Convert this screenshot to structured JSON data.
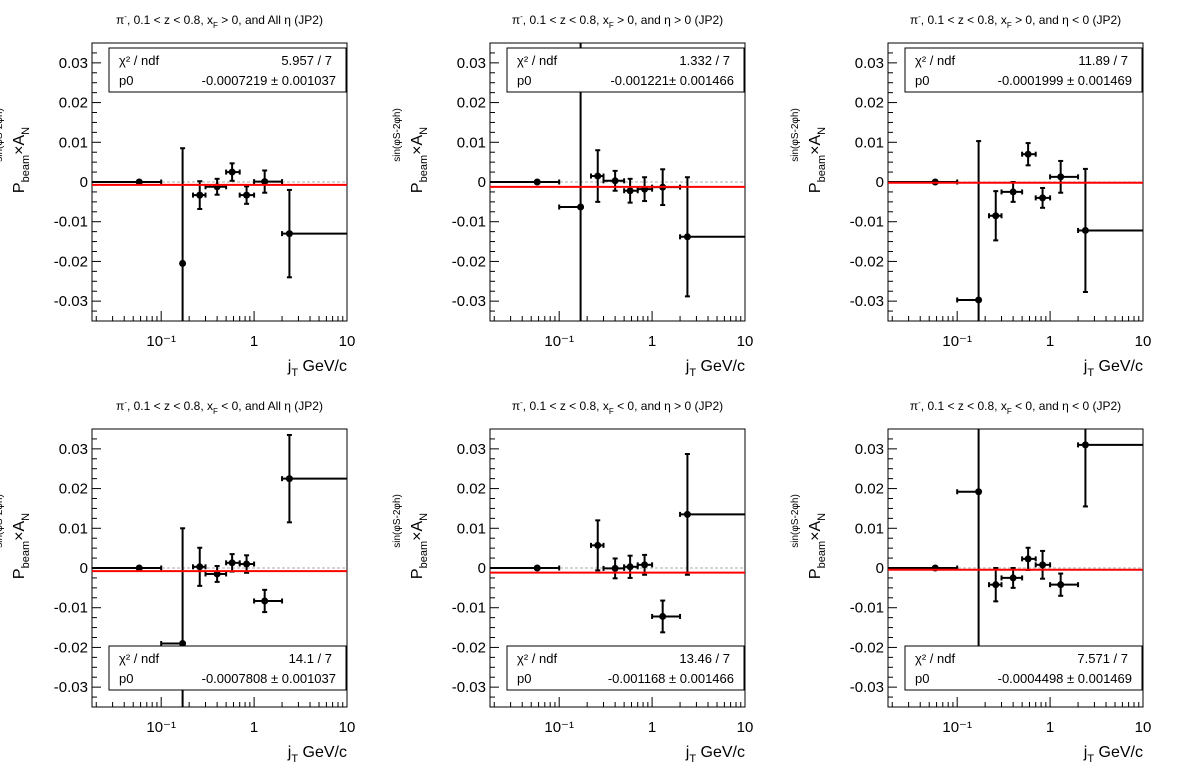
{
  "chart_data": [
    {
      "type": "scatter",
      "title": "π⁻, 0.1 < z < 0.8, x_F > 0, and All η (JP2)",
      "title_parts": {
        "pi": "π",
        "minus": "-",
        "a": ", 0.1 < z < 0.8, x",
        "sub": "F",
        "b": " > 0, and All η (JP2)"
      },
      "xlabel": {
        "j": "j",
        "sub": "T",
        "rest": " GeV/c"
      },
      "ylabel": {
        "p": "P",
        "sub": "beam",
        "times": "×A",
        "n": "N",
        "sup": "sin(φS-2φh)"
      },
      "xscale": "log",
      "xlim": [
        0.018,
        10
      ],
      "ylim": [
        -0.035,
        0.035
      ],
      "xticklabels": [
        "10⁻¹",
        "1",
        "10"
      ],
      "yticklabels": [
        "-0.03",
        "-0.02",
        "-0.01",
        "0",
        "0.01",
        "0.02",
        "0.03"
      ],
      "legend_position": "top",
      "stats": {
        "chi2_label": "χ² / ndf",
        "chi2_value": "5.957 / 7",
        "p0_label": "p0",
        "p0_value": "-0.0007219 ± 0.001037"
      },
      "fit": {
        "p0": -0.0007219,
        "color": "#ff0000"
      },
      "points": [
        {
          "x": 0.058,
          "xlo": 0.018,
          "xhi": 0.1,
          "y": 0.0,
          "err": 0.0
        },
        {
          "x": 0.17,
          "xlo": 0.163,
          "xhi": 0.177,
          "y": -0.0205,
          "err": 0.029
        },
        {
          "x": 0.26,
          "xlo": 0.22,
          "xhi": 0.3,
          "y": -0.0033,
          "err": 0.0035
        },
        {
          "x": 0.4,
          "xlo": 0.3,
          "xhi": 0.5,
          "y": -0.0012,
          "err": 0.002
        },
        {
          "x": 0.58,
          "xlo": 0.5,
          "xhi": 0.7,
          "y": 0.0025,
          "err": 0.0022
        },
        {
          "x": 0.83,
          "xlo": 0.7,
          "xhi": 1.0,
          "y": -0.0033,
          "err": 0.0022
        },
        {
          "x": 1.3,
          "xlo": 1.0,
          "xhi": 2.0,
          "y": 0.0001,
          "err": 0.0028
        },
        {
          "x": 2.4,
          "xlo": 2.0,
          "xhi": 10.0,
          "y": -0.013,
          "err": 0.011
        }
      ]
    },
    {
      "type": "scatter",
      "title": "π⁻, 0.1 < z < 0.8, x_F > 0, and η > 0 (JP2)",
      "title_parts": {
        "pi": "π",
        "minus": "-",
        "a": ", 0.1 < z < 0.8, x",
        "sub": "F",
        "b": " > 0, and η > 0 (JP2)"
      },
      "xlabel": {
        "j": "j",
        "sub": "T",
        "rest": " GeV/c"
      },
      "ylabel": {
        "p": "P",
        "sub": "beam",
        "times": "×A",
        "n": "N",
        "sup": "sin(φS-2φh)"
      },
      "xscale": "log",
      "xlim": [
        0.018,
        10
      ],
      "ylim": [
        -0.035,
        0.035
      ],
      "xticklabels": [
        "10⁻¹",
        "1",
        "10"
      ],
      "yticklabels": [
        "-0.03",
        "-0.02",
        "-0.01",
        "0",
        "0.01",
        "0.02",
        "0.03"
      ],
      "legend_position": "top",
      "stats": {
        "chi2_label": "χ² / ndf",
        "chi2_value": "1.332 / 7",
        "p0_label": "p0",
        "p0_value": "-0.001221± 0.001466"
      },
      "fit": {
        "p0": -0.001221,
        "color": "#ff0000"
      },
      "points": [
        {
          "x": 0.058,
          "xlo": 0.018,
          "xhi": 0.1,
          "y": 0.0,
          "err": 0.0
        },
        {
          "x": 0.17,
          "xlo": 0.1,
          "xhi": 0.17,
          "y": -0.0063,
          "err": 0.045
        },
        {
          "x": 0.26,
          "xlo": 0.22,
          "xhi": 0.3,
          "y": 0.0015,
          "err": 0.0065
        },
        {
          "x": 0.4,
          "xlo": 0.3,
          "xhi": 0.5,
          "y": 0.0003,
          "err": 0.0025
        },
        {
          "x": 0.58,
          "xlo": 0.5,
          "xhi": 0.7,
          "y": -0.0022,
          "err": 0.003
        },
        {
          "x": 0.83,
          "xlo": 0.7,
          "xhi": 1.0,
          "y": -0.0018,
          "err": 0.003
        },
        {
          "x": 1.3,
          "xlo": 1.0,
          "xhi": 2.0,
          "y": -0.0013,
          "err": 0.0045
        },
        {
          "x": 2.4,
          "xlo": 2.0,
          "xhi": 10.0,
          "y": -0.0138,
          "err": 0.015
        }
      ]
    },
    {
      "type": "scatter",
      "title": "π⁻, 0.1 < z < 0.8, x_F > 0, and η < 0 (JP2)",
      "title_parts": {
        "pi": "π",
        "minus": "-",
        "a": ", 0.1 < z < 0.8, x",
        "sub": "F",
        "b": " > 0, and η < 0 (JP2)"
      },
      "xlabel": {
        "j": "j",
        "sub": "T",
        "rest": " GeV/c"
      },
      "ylabel": {
        "p": "P",
        "sub": "beam",
        "times": "×A",
        "n": "N",
        "sup": "sin(φS-2φh)"
      },
      "xscale": "log",
      "xlim": [
        0.018,
        10
      ],
      "ylim": [
        -0.035,
        0.035
      ],
      "xticklabels": [
        "10⁻¹",
        "1",
        "10"
      ],
      "yticklabels": [
        "-0.03",
        "-0.02",
        "-0.01",
        "0",
        "0.01",
        "0.02",
        "0.03"
      ],
      "legend_position": "top",
      "stats": {
        "chi2_label": "χ² / ndf",
        "chi2_value": "11.89 / 7",
        "p0_label": "p0",
        "p0_value": "-0.0001999 ± 0.001469"
      },
      "fit": {
        "p0": -0.0001999,
        "color": "#ff0000"
      },
      "points": [
        {
          "x": 0.058,
          "xlo": 0.018,
          "xhi": 0.1,
          "y": 0.0,
          "err": 0.0
        },
        {
          "x": 0.17,
          "xlo": 0.1,
          "xhi": 0.17,
          "y": -0.0297,
          "err": 0.04
        },
        {
          "x": 0.26,
          "xlo": 0.22,
          "xhi": 0.3,
          "y": -0.0085,
          "err": 0.0062
        },
        {
          "x": 0.4,
          "xlo": 0.3,
          "xhi": 0.5,
          "y": -0.0025,
          "err": 0.0025
        },
        {
          "x": 0.58,
          "xlo": 0.5,
          "xhi": 0.7,
          "y": 0.007,
          "err": 0.0028
        },
        {
          "x": 0.83,
          "xlo": 0.7,
          "xhi": 1.0,
          "y": -0.004,
          "err": 0.0025
        },
        {
          "x": 1.3,
          "xlo": 1.0,
          "xhi": 2.0,
          "y": 0.0013,
          "err": 0.004
        },
        {
          "x": 2.4,
          "xlo": 2.0,
          "xhi": 10.0,
          "y": -0.0122,
          "err": 0.0155
        }
      ]
    },
    {
      "type": "scatter",
      "title": "π⁻, 0.1 < z < 0.8, x_F < 0, and All η (JP2)",
      "title_parts": {
        "pi": "π",
        "minus": "-",
        "a": ", 0.1 < z < 0.8, x",
        "sub": "F",
        "b": " < 0, and All η (JP2)"
      },
      "xlabel": {
        "j": "j",
        "sub": "T",
        "rest": " GeV/c"
      },
      "ylabel": {
        "p": "P",
        "sub": "beam",
        "times": "×A",
        "n": "N",
        "sup": "sin(φS-2φh)"
      },
      "xscale": "log",
      "xlim": [
        0.018,
        10
      ],
      "ylim": [
        -0.035,
        0.035
      ],
      "xticklabels": [
        "10⁻¹",
        "1",
        "10"
      ],
      "yticklabels": [
        "-0.03",
        "-0.02",
        "-0.01",
        "0",
        "0.01",
        "0.02",
        "0.03"
      ],
      "legend_position": "bottom",
      "stats": {
        "chi2_label": "χ² / ndf",
        "chi2_value": "14.1 / 7",
        "p0_label": "p0",
        "p0_value": "-0.0007808 ± 0.001037"
      },
      "fit": {
        "p0": -0.0007808,
        "color": "#ff0000"
      },
      "points": [
        {
          "x": 0.058,
          "xlo": 0.018,
          "xhi": 0.1,
          "y": 0.0,
          "err": 0.0
        },
        {
          "x": 0.17,
          "xlo": 0.1,
          "xhi": 0.17,
          "y": -0.019,
          "err": 0.029
        },
        {
          "x": 0.26,
          "xlo": 0.22,
          "xhi": 0.3,
          "y": 0.0003,
          "err": 0.0048
        },
        {
          "x": 0.4,
          "xlo": 0.3,
          "xhi": 0.5,
          "y": -0.0015,
          "err": 0.002
        },
        {
          "x": 0.58,
          "xlo": 0.5,
          "xhi": 0.7,
          "y": 0.0013,
          "err": 0.0022
        },
        {
          "x": 0.83,
          "xlo": 0.7,
          "xhi": 1.0,
          "y": 0.001,
          "err": 0.0022
        },
        {
          "x": 1.3,
          "xlo": 1.0,
          "xhi": 2.0,
          "y": -0.0083,
          "err": 0.0028
        },
        {
          "x": 2.4,
          "xlo": 2.0,
          "xhi": 10.0,
          "y": 0.0225,
          "err": 0.011
        }
      ]
    },
    {
      "type": "scatter",
      "title": "π⁻, 0.1 < z < 0.8, x_F < 0, and η > 0 (JP2)",
      "title_parts": {
        "pi": "π",
        "minus": "-",
        "a": ", 0.1 < z < 0.8, x",
        "sub": "F",
        "b": " < 0, and η > 0 (JP2)"
      },
      "xlabel": {
        "j": "j",
        "sub": "T",
        "rest": " GeV/c"
      },
      "ylabel": {
        "p": "P",
        "sub": "beam",
        "times": "×A",
        "n": "N",
        "sup": "sin(φS-2φh)"
      },
      "xscale": "log",
      "xlim": [
        0.018,
        10
      ],
      "ylim": [
        -0.035,
        0.035
      ],
      "xticklabels": [
        "10⁻¹",
        "1",
        "10"
      ],
      "yticklabels": [
        "-0.03",
        "-0.02",
        "-0.01",
        "0",
        "0.01",
        "0.02",
        "0.03"
      ],
      "legend_position": "bottom",
      "stats": {
        "chi2_label": "χ² / ndf",
        "chi2_value": "13.46 / 7",
        "p0_label": "p0",
        "p0_value": "-0.001168 ± 0.001466"
      },
      "fit": {
        "p0": -0.001168,
        "color": "#ff0000"
      },
      "points": [
        {
          "x": 0.058,
          "xlo": 0.018,
          "xhi": 0.1,
          "y": 0.0,
          "err": 0.0
        },
        {
          "x": 0.26,
          "xlo": 0.22,
          "xhi": 0.3,
          "y": 0.0057,
          "err": 0.0063
        },
        {
          "x": 0.4,
          "xlo": 0.3,
          "xhi": 0.5,
          "y": -0.0001,
          "err": 0.0025
        },
        {
          "x": 0.58,
          "xlo": 0.5,
          "xhi": 0.7,
          "y": 0.0003,
          "err": 0.0028
        },
        {
          "x": 0.83,
          "xlo": 0.7,
          "xhi": 1.0,
          "y": 0.0008,
          "err": 0.0025
        },
        {
          "x": 1.3,
          "xlo": 1.0,
          "xhi": 2.0,
          "y": -0.0122,
          "err": 0.004
        },
        {
          "x": 2.4,
          "xlo": 2.0,
          "xhi": 10.0,
          "y": 0.0135,
          "err": 0.0152
        }
      ]
    },
    {
      "type": "scatter",
      "title": "π⁻, 0.1 < z < 0.8, x_F < 0, and η < 0 (JP2)",
      "title_parts": {
        "pi": "π",
        "minus": "-",
        "a": ", 0.1 < z < 0.8, x",
        "sub": "F",
        "b": " < 0, and η < 0 (JP2)"
      },
      "xlabel": {
        "j": "j",
        "sub": "T",
        "rest": " GeV/c"
      },
      "ylabel": {
        "p": "P",
        "sub": "beam",
        "times": "×A",
        "n": "N",
        "sup": "sin(φS-2φh)"
      },
      "xscale": "log",
      "xlim": [
        0.018,
        10
      ],
      "ylim": [
        -0.035,
        0.035
      ],
      "xticklabels": [
        "10⁻¹",
        "1",
        "10"
      ],
      "yticklabels": [
        "-0.03",
        "-0.02",
        "-0.01",
        "0",
        "0.01",
        "0.02",
        "0.03"
      ],
      "legend_position": "bottom",
      "stats": {
        "chi2_label": "χ² / ndf",
        "chi2_value": "7.571 / 7",
        "p0_label": "p0",
        "p0_value": "-0.0004498 ± 0.001469"
      },
      "fit": {
        "p0": -0.0004498,
        "color": "#ff0000"
      },
      "points": [
        {
          "x": 0.058,
          "xlo": 0.018,
          "xhi": 0.1,
          "y": 0.0,
          "err": 0.0
        },
        {
          "x": 0.17,
          "xlo": 0.1,
          "xhi": 0.17,
          "y": 0.0192,
          "err": 0.04
        },
        {
          "x": 0.26,
          "xlo": 0.22,
          "xhi": 0.3,
          "y": -0.0042,
          "err": 0.0042
        },
        {
          "x": 0.4,
          "xlo": 0.3,
          "xhi": 0.5,
          "y": -0.0025,
          "err": 0.0025
        },
        {
          "x": 0.58,
          "xlo": 0.5,
          "xhi": 0.7,
          "y": 0.0023,
          "err": 0.0028
        },
        {
          "x": 0.83,
          "xlo": 0.7,
          "xhi": 1.0,
          "y": 0.0008,
          "err": 0.0035
        },
        {
          "x": 1.3,
          "xlo": 1.0,
          "xhi": 2.0,
          "y": -0.0042,
          "err": 0.0028
        },
        {
          "x": 2.4,
          "xlo": 2.0,
          "xhi": 10.0,
          "y": 0.031,
          "err": 0.0155
        }
      ]
    }
  ]
}
